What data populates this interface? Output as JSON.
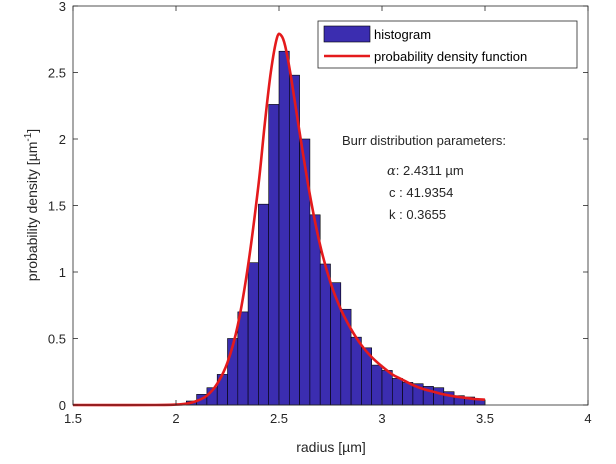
{
  "chart_data": {
    "type": "bar",
    "xlabel": "radius [µm]",
    "ylabel_main": "probability density [µm",
    "ylabel_sup": "-1",
    "ylabel_close": "]",
    "xlim": [
      1.5,
      4
    ],
    "ylim": [
      0,
      3
    ],
    "xticks": [
      1.5,
      2,
      2.5,
      3,
      3.5,
      4
    ],
    "xtick_labels": [
      "1.5",
      "2",
      "2.5",
      "3",
      "3.5",
      "4"
    ],
    "yticks": [
      0,
      0.5,
      1,
      1.5,
      2,
      2.5,
      3
    ],
    "ytick_labels": [
      "0",
      "0.5",
      "1",
      "1.5",
      "2",
      "2.5",
      "3"
    ],
    "grid": false,
    "legend_position": "top-right",
    "legend": [
      "histogram",
      "probability density function"
    ],
    "colors": {
      "histogram": "#3b2db0",
      "pdf": "#e41a1c",
      "edge": "#000000"
    },
    "histogram": {
      "name": "histogram",
      "bin_width": 0.05,
      "bins": [
        {
          "x0": 2.05,
          "value": 0.03
        },
        {
          "x0": 2.1,
          "value": 0.08
        },
        {
          "x0": 2.15,
          "value": 0.13
        },
        {
          "x0": 2.2,
          "value": 0.23
        },
        {
          "x0": 2.25,
          "value": 0.5
        },
        {
          "x0": 2.3,
          "value": 0.7
        },
        {
          "x0": 2.35,
          "value": 1.07
        },
        {
          "x0": 2.4,
          "value": 1.51
        },
        {
          "x0": 2.45,
          "value": 2.26
        },
        {
          "x0": 2.5,
          "value": 2.66
        },
        {
          "x0": 2.55,
          "value": 2.48
        },
        {
          "x0": 2.6,
          "value": 2.0
        },
        {
          "x0": 2.65,
          "value": 1.43
        },
        {
          "x0": 2.7,
          "value": 1.06
        },
        {
          "x0": 2.75,
          "value": 0.92
        },
        {
          "x0": 2.8,
          "value": 0.72
        },
        {
          "x0": 2.85,
          "value": 0.51
        },
        {
          "x0": 2.9,
          "value": 0.43
        },
        {
          "x0": 2.95,
          "value": 0.3
        },
        {
          "x0": 3.0,
          "value": 0.26
        },
        {
          "x0": 3.05,
          "value": 0.2
        },
        {
          "x0": 3.1,
          "value": 0.17
        },
        {
          "x0": 3.15,
          "value": 0.16
        },
        {
          "x0": 3.2,
          "value": 0.14
        },
        {
          "x0": 3.25,
          "value": 0.13
        },
        {
          "x0": 3.3,
          "value": 0.1
        },
        {
          "x0": 3.35,
          "value": 0.07
        },
        {
          "x0": 3.4,
          "value": 0.06
        },
        {
          "x0": 3.45,
          "value": 0.04
        }
      ]
    },
    "pdf": {
      "name": "probability density function",
      "points": [
        [
          1.5,
          0.0
        ],
        [
          1.9,
          0.0
        ],
        [
          2.0,
          0.003
        ],
        [
          2.05,
          0.01
        ],
        [
          2.1,
          0.03
        ],
        [
          2.15,
          0.07
        ],
        [
          2.2,
          0.16
        ],
        [
          2.25,
          0.32
        ],
        [
          2.3,
          0.6
        ],
        [
          2.35,
          1.05
        ],
        [
          2.4,
          1.65
        ],
        [
          2.43,
          2.1
        ],
        [
          2.46,
          2.5
        ],
        [
          2.49,
          2.76
        ],
        [
          2.51,
          2.78
        ],
        [
          2.53,
          2.7
        ],
        [
          2.56,
          2.45
        ],
        [
          2.6,
          2.05
        ],
        [
          2.65,
          1.58
        ],
        [
          2.7,
          1.2
        ],
        [
          2.75,
          0.92
        ],
        [
          2.8,
          0.72
        ],
        [
          2.85,
          0.57
        ],
        [
          2.9,
          0.45
        ],
        [
          2.95,
          0.36
        ],
        [
          3.0,
          0.29
        ],
        [
          3.05,
          0.23
        ],
        [
          3.1,
          0.19
        ],
        [
          3.15,
          0.15
        ],
        [
          3.2,
          0.12
        ],
        [
          3.25,
          0.1
        ],
        [
          3.3,
          0.08
        ],
        [
          3.35,
          0.065
        ],
        [
          3.4,
          0.055
        ],
        [
          3.45,
          0.045
        ],
        [
          3.5,
          0.04
        ]
      ]
    },
    "annotations": {
      "title": "Burr distribution parameters:",
      "alpha_symbol": "α",
      "alpha_text": ": 2.4311 µm",
      "c_text": "c : 41.9354",
      "k_text": "k : 0.3655"
    }
  }
}
